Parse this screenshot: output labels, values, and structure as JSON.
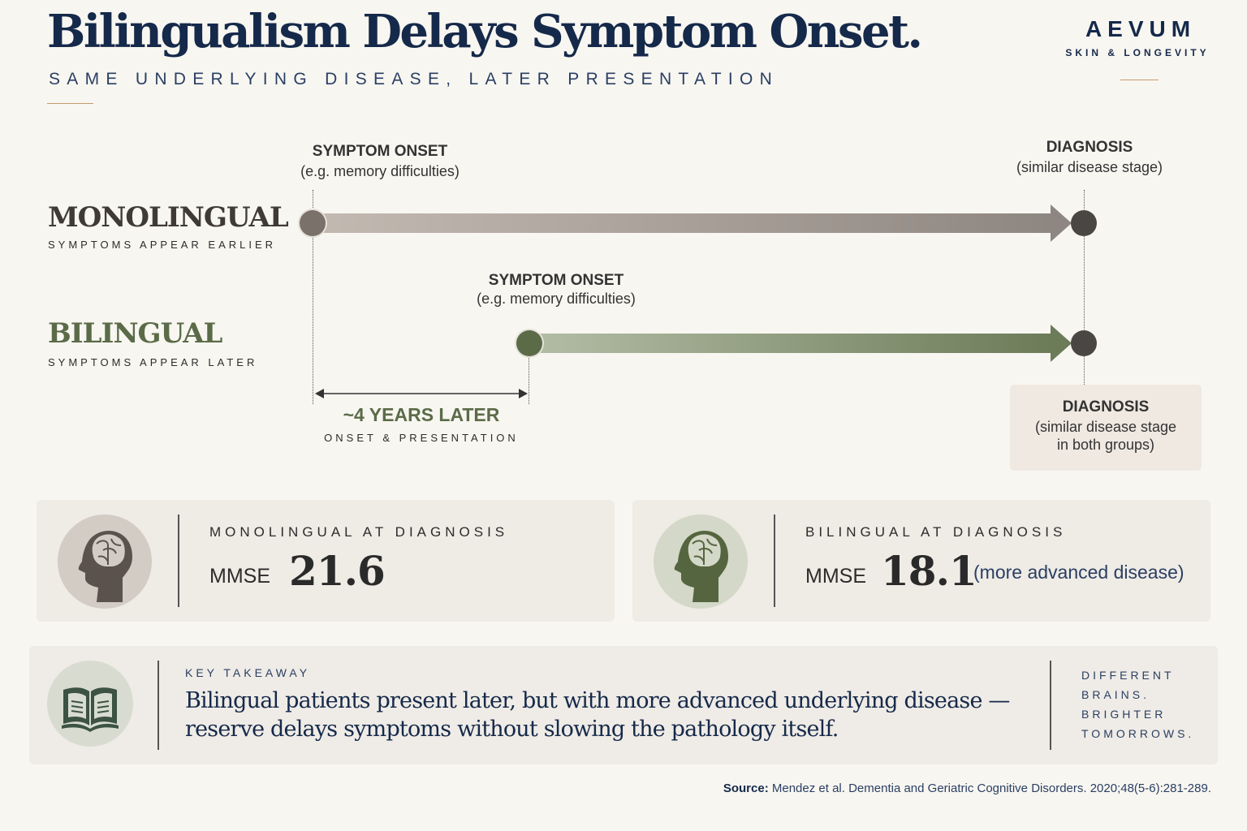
{
  "header": {
    "title": "Bilingualism Delays Symptom Onset.",
    "subtitle": "SAME UNDERLYING DISEASE, LATER PRESENTATION"
  },
  "brand": {
    "name": "AEVUM",
    "tagline": "SKIN & LONGEVITY"
  },
  "timeline": {
    "monolingual": {
      "name": "MONOLINGUAL",
      "caption": "SYMPTOMS APPEAR EARLIER",
      "onset_title": "SYMPTOM ONSET",
      "onset_sub": "(e.g. memory difficulties)",
      "diagnosis_title": "DIAGNOSIS",
      "diagnosis_sub": "(similar disease stage)"
    },
    "bilingual": {
      "name": "BILINGUAL",
      "caption": "SYMPTOMS APPEAR LATER",
      "onset_title": "SYMPTOM ONSET",
      "onset_sub": "(e.g. memory difficulties)",
      "diagnosis_title": "DIAGNOSIS",
      "diagnosis_sub_line1": "(similar disease stage",
      "diagnosis_sub_line2": "in both groups)"
    },
    "gap": {
      "label": "~4 YEARS LATER",
      "caption": "ONSET & PRESENTATION"
    }
  },
  "cards": [
    {
      "label": "MONOLINGUAL AT DIAGNOSIS",
      "metric": "MMSE",
      "value": "21.6",
      "note": ""
    },
    {
      "label": "BILINGUAL AT DIAGNOSIS",
      "metric": "MMSE",
      "value": "18.1",
      "note": "(more advanced disease)"
    }
  ],
  "takeaway": {
    "label": "KEY TAKEAWAY",
    "line1": "Bilingual patients present later, but with more advanced underlying disease —",
    "line2": "reserve delays symptoms without slowing the pathology itself.",
    "tagline": [
      "DIFFERENT",
      "BRAINS.",
      "BRIGHTER",
      "TOMORROWS."
    ]
  },
  "source": {
    "label": "Source:",
    "text": "Mendez et al. Dementia and Geriatric Cognitive Disorders. 2020;48(5-6):281-289."
  },
  "colors": {
    "navy": "#15294a",
    "gold": "#c49a6c",
    "monolingual_gray": "#7a716a",
    "bilingual_green": "#5b6b48",
    "diagnosis_dot": "#4a4644",
    "background": "#f8f6f1"
  },
  "icons": [
    "head-brain-icon",
    "open-book-icon"
  ]
}
